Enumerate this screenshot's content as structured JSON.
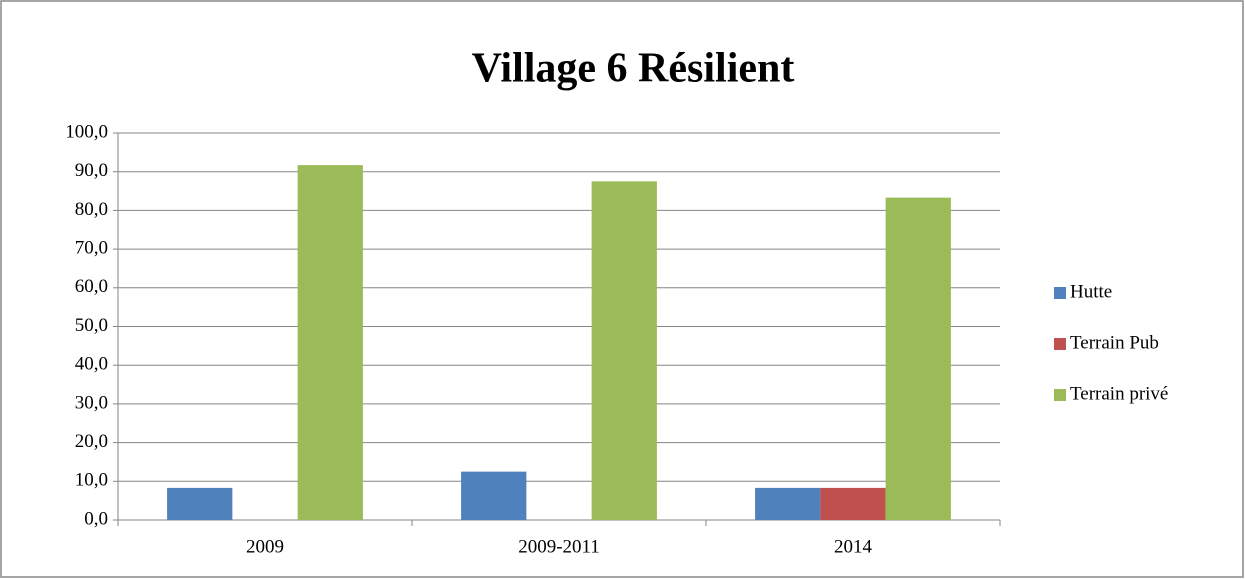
{
  "chart_data": {
    "type": "bar",
    "title": "Village 6 Résilient",
    "categories": [
      "2009",
      "2009-2011",
      "2014"
    ],
    "series": [
      {
        "name": "Hutte",
        "color": "#4f81bd",
        "values": [
          8.3,
          12.5,
          8.3
        ]
      },
      {
        "name": "Terrain Pub",
        "color": "#c0504d",
        "values": [
          0,
          0,
          8.3
        ]
      },
      {
        "name": "Terrain privé",
        "color": "#9bbb59",
        "values": [
          91.7,
          87.5,
          83.3
        ]
      }
    ],
    "ylim": [
      0,
      100
    ],
    "yticks": [
      {
        "value": 0,
        "label": "0,0"
      },
      {
        "value": 10,
        "label": "10,0"
      },
      {
        "value": 20,
        "label": "20,0"
      },
      {
        "value": 30,
        "label": "30,0"
      },
      {
        "value": 40,
        "label": "40,0"
      },
      {
        "value": 50,
        "label": "50,0"
      },
      {
        "value": 60,
        "label": "60,0"
      },
      {
        "value": 70,
        "label": "70,0"
      },
      {
        "value": 80,
        "label": "80,0"
      },
      {
        "value": 90,
        "label": "90,0"
      },
      {
        "value": 100,
        "label": "100,0"
      }
    ],
    "grid": true,
    "legend": "right"
  }
}
